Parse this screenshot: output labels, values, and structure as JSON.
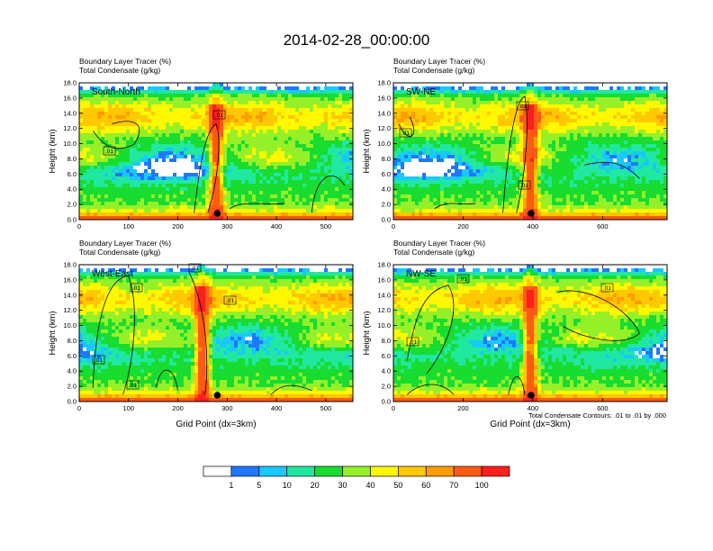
{
  "figure": {
    "title": "2014-02-28_00:00:00",
    "footnote": "Total Condensate Contours: .01 to .01 by .000"
  },
  "colorbar": {
    "labels": [
      "1",
      "5",
      "10",
      "20",
      "30",
      "40",
      "50",
      "60",
      "70",
      "100"
    ],
    "colors": [
      "#ffffff",
      "#1e78ff",
      "#18c8ff",
      "#20e8a0",
      "#18dc30",
      "#96f028",
      "#fff800",
      "#ffc800",
      "#ff9c00",
      "#ff5a14",
      "#ff1e1e"
    ]
  },
  "chart_data": [
    {
      "type": "heatmap",
      "panel_label": "South-North",
      "title_line1": "Boundary Layer Tracer   (%)",
      "title_line2": "Total Condensate   (g/kg)",
      "ylabel": "Height (km)",
      "xlabel": "",
      "xlim": [
        0,
        555
      ],
      "ylim": [
        0,
        18
      ],
      "x_ticks": [
        "0",
        "100",
        "200",
        "300",
        "400",
        "500"
      ],
      "y_ticks": [
        "0.0",
        "2.0",
        "4.0",
        "6.0",
        "8.0",
        "10.0",
        "12.0",
        "14.0",
        "16.0",
        "18.0"
      ],
      "contour_labels": [
        ".01",
        ".01"
      ],
      "marker_x": 280
    },
    {
      "type": "heatmap",
      "panel_label": "SW-NE",
      "title_line1": "Boundary Layer Tracer   (%)",
      "title_line2": "Total Condensate   (g/kg)",
      "ylabel": "Height (km)",
      "xlabel": "",
      "xlim": [
        0,
        785
      ],
      "ylim": [
        0,
        18
      ],
      "x_ticks": [
        "0",
        "200",
        "400",
        "600"
      ],
      "y_ticks": [
        "0.0",
        "2.0",
        "4.0",
        "6.0",
        "8.0",
        "10.0",
        "12.0",
        "14.0",
        "16.0",
        "18.0"
      ],
      "contour_labels": [
        ".01",
        ".01",
        ".01"
      ],
      "marker_x": 395
    },
    {
      "type": "heatmap",
      "panel_label": "West-East",
      "title_line1": "Boundary Layer Tracer   (%)",
      "title_line2": "Total Condensate   (g/kg)",
      "ylabel": "Height (km)",
      "xlabel": "Grid Point (dx=3km)",
      "xlim": [
        0,
        555
      ],
      "ylim": [
        0,
        18
      ],
      "x_ticks": [
        "0",
        "100",
        "200",
        "300",
        "400",
        "500"
      ],
      "y_ticks": [
        "0.0",
        "2.0",
        "4.0",
        "6.0",
        "8.0",
        "10.0",
        "12.0",
        "14.0",
        "16.0",
        "18.0"
      ],
      "contour_labels": [
        ".01",
        ".01",
        ".01",
        ".01",
        ".01"
      ],
      "marker_x": 280
    },
    {
      "type": "heatmap",
      "panel_label": "NW-SE",
      "title_line1": "Boundary Layer Tracer   (%)",
      "title_line2": "Total Condensate   (g/kg)",
      "ylabel": "Height (km)",
      "xlabel": "Grid Point (dx=3km)",
      "xlim": [
        0,
        785
      ],
      "ylim": [
        0,
        18
      ],
      "x_ticks": [
        "0",
        "200",
        "400",
        "600"
      ],
      "y_ticks": [
        "0.0",
        "2.0",
        "4.0",
        "6.0",
        "8.0",
        "10.0",
        "12.0",
        "14.0",
        "16.0",
        "18.0"
      ],
      "contour_labels": [
        ".01",
        ".01",
        ".01"
      ],
      "marker_x": 395
    }
  ]
}
